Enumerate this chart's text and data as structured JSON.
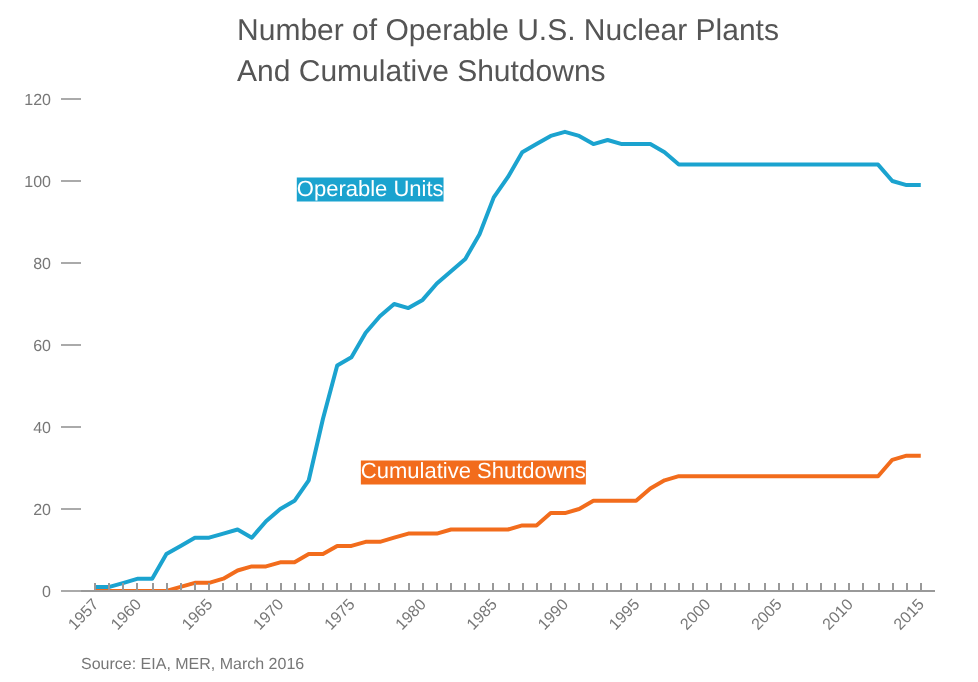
{
  "chart_data": {
    "type": "line",
    "title": "Number of Operable U.S. Nuclear Plants\nAnd Cumulative Shutdowns",
    "x": [
      1957,
      1958,
      1959,
      1960,
      1961,
      1962,
      1963,
      1964,
      1965,
      1966,
      1967,
      1968,
      1969,
      1970,
      1971,
      1972,
      1973,
      1974,
      1975,
      1976,
      1977,
      1978,
      1979,
      1980,
      1981,
      1982,
      1983,
      1984,
      1985,
      1986,
      1987,
      1988,
      1989,
      1990,
      1991,
      1992,
      1993,
      1994,
      1995,
      1996,
      1997,
      1998,
      1999,
      2000,
      2001,
      2002,
      2003,
      2004,
      2005,
      2006,
      2007,
      2008,
      2009,
      2010,
      2011,
      2012,
      2013,
      2014,
      2015
    ],
    "series": [
      {
        "name": "Operable Units",
        "color": "#1ba3cf",
        "values": [
          1,
          1,
          2,
          3,
          3,
          9,
          11,
          13,
          13,
          14,
          15,
          13,
          17,
          20,
          22,
          27,
          42,
          55,
          57,
          63,
          67,
          70,
          69,
          71,
          75,
          78,
          81,
          87,
          96,
          101,
          107,
          109,
          111,
          112,
          111,
          109,
          110,
          109,
          109,
          109,
          107,
          104,
          104,
          104,
          104,
          104,
          104,
          104,
          104,
          104,
          104,
          104,
          104,
          104,
          104,
          104,
          100,
          99,
          99
        ]
      },
      {
        "name": "Cumulative Shutdowns",
        "color": "#f26c1c",
        "values": [
          0,
          0,
          0,
          0,
          0,
          0,
          1,
          2,
          2,
          3,
          5,
          6,
          6,
          7,
          7,
          9,
          9,
          11,
          11,
          12,
          12,
          13,
          14,
          14,
          14,
          15,
          15,
          15,
          15,
          15,
          16,
          16,
          19,
          19,
          20,
          22,
          22,
          22,
          22,
          25,
          27,
          28,
          28,
          28,
          28,
          28,
          28,
          28,
          28,
          28,
          28,
          28,
          28,
          28,
          28,
          28,
          32,
          33,
          33
        ]
      }
    ],
    "xlim": [
      1956,
      2016
    ],
    "xticks": [
      1957,
      1960,
      1965,
      1970,
      1975,
      1980,
      1985,
      1990,
      1995,
      2000,
      2005,
      2010,
      2015
    ],
    "ylim": [
      0,
      120
    ],
    "yticks": [
      0,
      20,
      40,
      60,
      80,
      100,
      120
    ],
    "grid": false,
    "legend": false,
    "annotations": [
      "Source: EIA, MER, March 2016"
    ]
  }
}
